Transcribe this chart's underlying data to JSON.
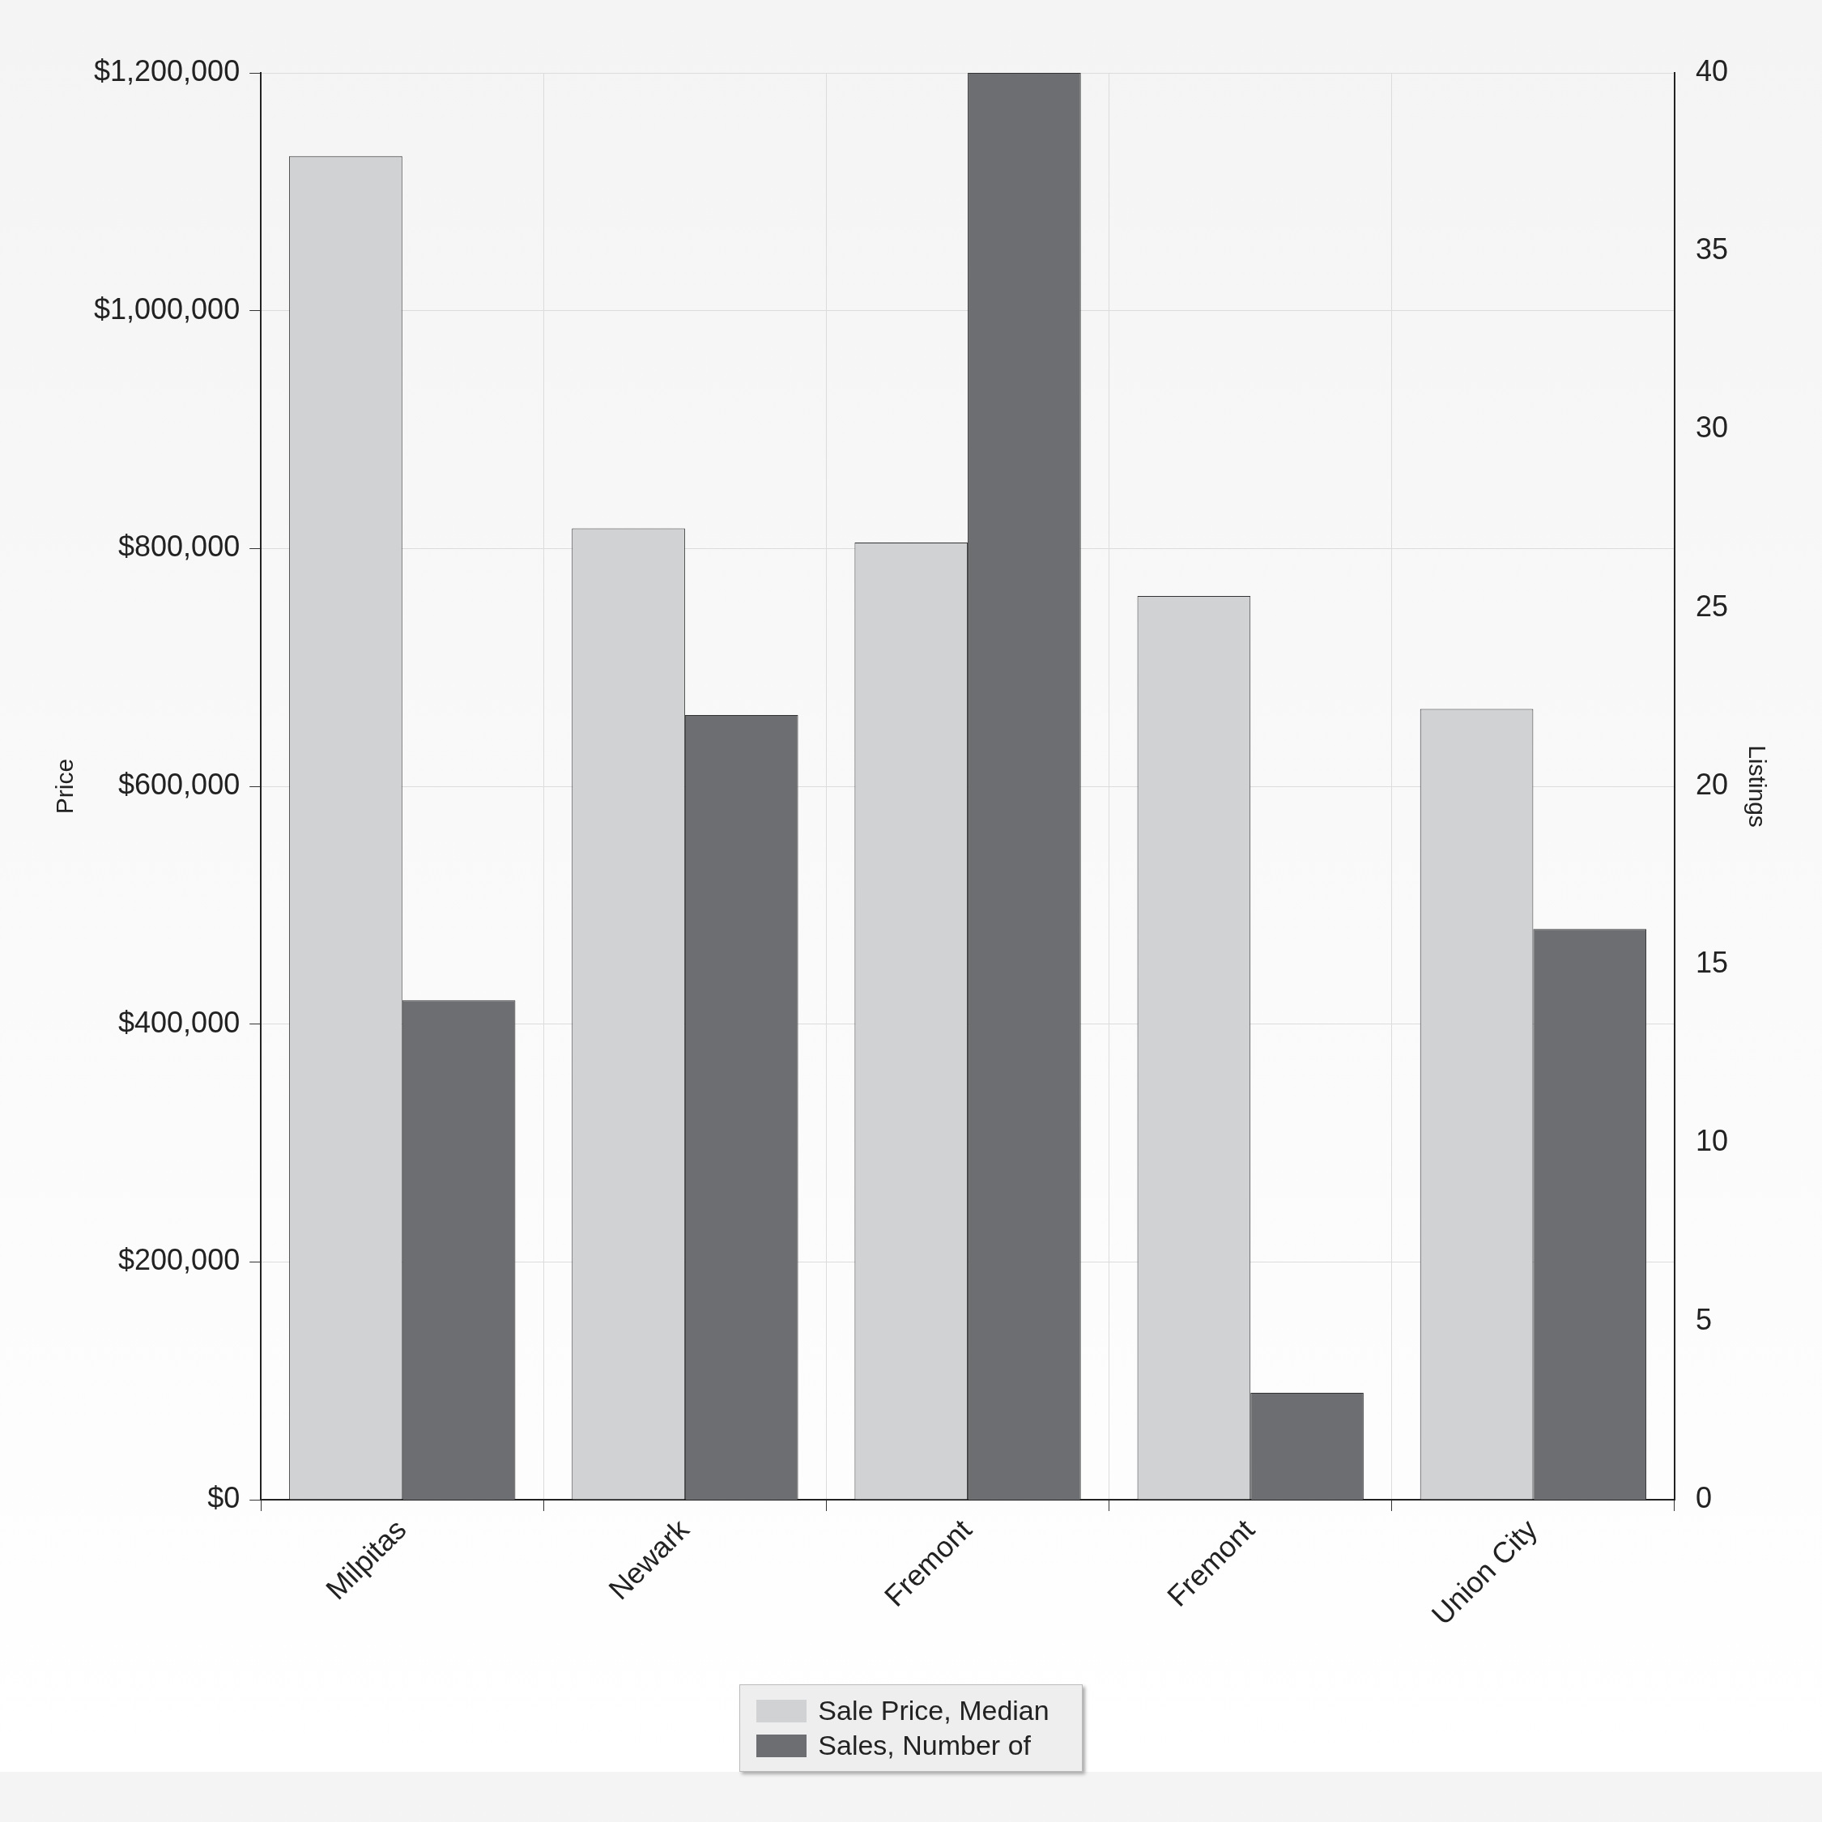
{
  "chart_data": {
    "type": "bar",
    "xlabel": null,
    "ylabel": "Price",
    "y2label": "Listings",
    "categories": [
      "Milpitas",
      "Newark",
      "Fremont",
      "Fremont",
      "Union City"
    ],
    "series": [
      {
        "name": "Sale Price, Median",
        "color": "#d1d2d4",
        "values": [
          1130000,
          817000,
          805000,
          760000,
          665000
        ]
      },
      {
        "name": "Sales, Number of",
        "color": "#6d6e71",
        "axis": "y2",
        "values": [
          14,
          22,
          40,
          3,
          16
        ]
      }
    ],
    "ylim": [
      0,
      1200000
    ],
    "yticks": [
      {
        "value": 0,
        "label": "$0"
      },
      {
        "value": 200000,
        "label": "$200,000"
      },
      {
        "value": 400000,
        "label": "$400,000"
      },
      {
        "value": 600000,
        "label": "$600,000"
      },
      {
        "value": 800000,
        "label": "$800,000"
      },
      {
        "value": 1000000,
        "label": "$1,000,000"
      },
      {
        "value": 1200000,
        "label": "$1,200,000"
      }
    ],
    "y2lim": [
      0,
      40
    ],
    "y2ticks": [
      0,
      5,
      10,
      15,
      20,
      25,
      30,
      35,
      40
    ],
    "grid": true,
    "legend": "bottom"
  }
}
